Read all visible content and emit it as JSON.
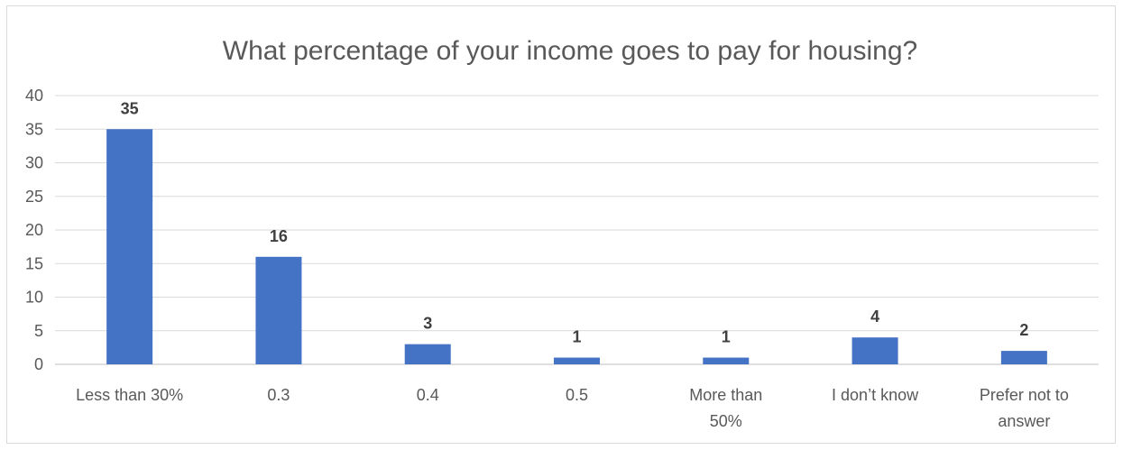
{
  "chart_data": {
    "type": "bar",
    "title": "What percentage of your income goes to pay for housing?",
    "xlabel": "",
    "ylabel": "",
    "categories": [
      "Less than 30%",
      "0.3",
      "0.4",
      "0.5",
      "More than 50%",
      "I don’t know",
      "Prefer not to answer"
    ],
    "category_lines": [
      [
        "Less than 30%"
      ],
      [
        "0.3"
      ],
      [
        "0.4"
      ],
      [
        "0.5"
      ],
      [
        "More than",
        "50%"
      ],
      [
        "I don’t know"
      ],
      [
        "Prefer not to",
        "answer"
      ]
    ],
    "values": [
      35,
      16,
      3,
      1,
      1,
      4,
      2
    ],
    "ylim": [
      0,
      40
    ],
    "yticks": [
      0,
      5,
      10,
      15,
      20,
      25,
      30,
      35,
      40
    ],
    "grid": true,
    "legend": "none",
    "bar_color": "#4472c4",
    "data_labels": true
  }
}
